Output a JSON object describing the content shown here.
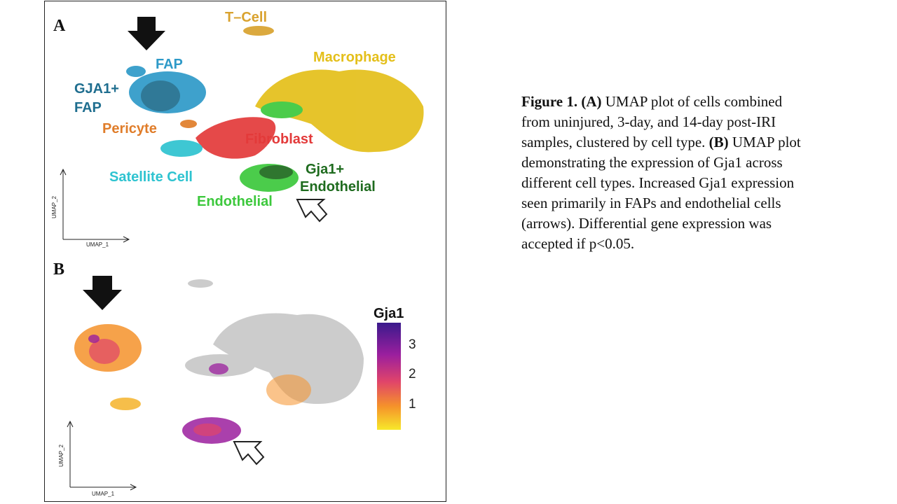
{
  "panel_a": {
    "letter": "A",
    "clusters": [
      {
        "name": "T–Cell",
        "color": "#d9a22e"
      },
      {
        "name": "FAP",
        "color": "#2e9ac8"
      },
      {
        "name": "Macrophage",
        "color": "#e4bf1a"
      },
      {
        "name": "GJA1+",
        "color": "#1f6e8f"
      },
      {
        "name": "FAP",
        "color": "#1f6e8f"
      },
      {
        "name": "Pericyte",
        "color": "#e07d2a"
      },
      {
        "name": "Fibroblast",
        "color": "#e33a3a"
      },
      {
        "name": "Satellite Cell",
        "color": "#2ec3d0"
      },
      {
        "name": "Gja1+",
        "color": "#1e6b1e"
      },
      {
        "name": "Endothelial",
        "color": "#1e6b1e"
      },
      {
        "name": "Endothelial",
        "color": "#3cc83c"
      }
    ],
    "axis_x": "UMAP_1",
    "axis_y": "UMAP_2",
    "arrows": [
      {
        "style": "filled",
        "target": "FAP"
      },
      {
        "style": "outline",
        "target": "Endothelial"
      }
    ]
  },
  "panel_b": {
    "letter": "B",
    "axis_x": "UMAP_1",
    "axis_y": "UMAP_2",
    "legend": {
      "title": "Gja1",
      "ticks": [
        "3",
        "2",
        "1"
      ],
      "colors": [
        "#3a1a8c",
        "#9b1f9e",
        "#e0446a",
        "#f5922a",
        "#f7e82a"
      ]
    },
    "background_color": "#cccccc",
    "arrows": [
      {
        "style": "filled",
        "target": "FAP"
      },
      {
        "style": "outline",
        "target": "Endothelial"
      }
    ]
  },
  "caption": {
    "fig_label": "Figure 1.",
    "a_label": "(A)",
    "a_text": "UMAP plot of cells combined from uninjured, 3-day, and 14-day post-IRI samples, clustered by cell type.",
    "b_label": "(B)",
    "b_text": "UMAP plot demonstrating the expression of Gja1 across different cell types. Increased Gja1 expression seen primarily in FAPs and endothelial cells (arrows). Differential gene expression was accepted if p<0.05."
  }
}
